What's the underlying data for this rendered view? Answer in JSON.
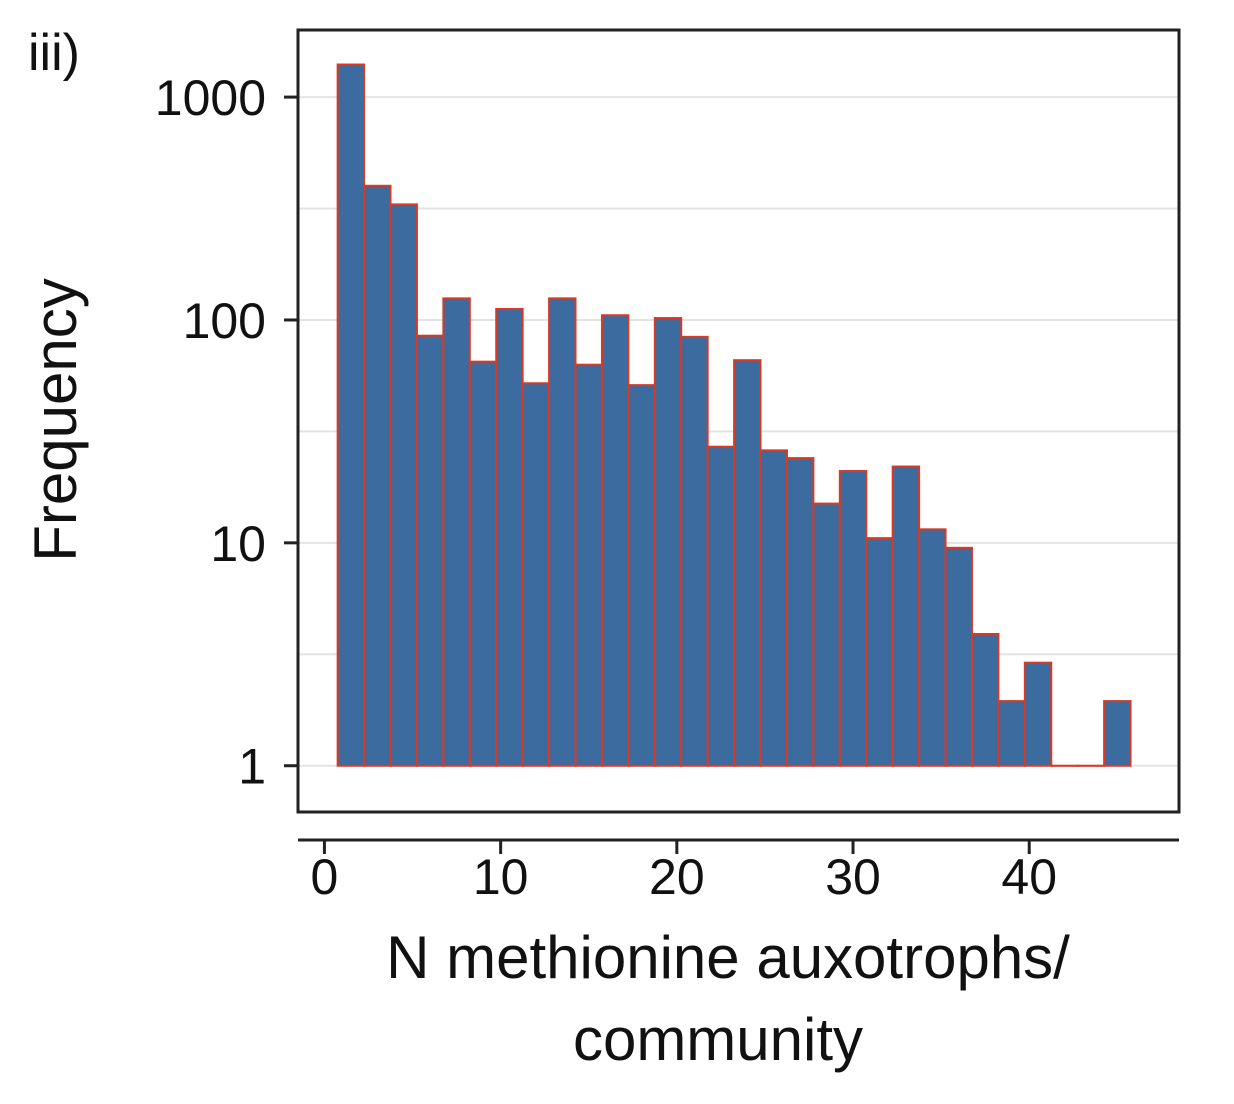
{
  "panel_label": "iii)",
  "chart_data": {
    "type": "bar",
    "title": "",
    "xlabel_lines": [
      "N methionine auxotrophs/",
      "community"
    ],
    "ylabel": "Frequency",
    "yscale": "log",
    "ylim": [
      0.62,
      2000
    ],
    "xlim": [
      -1.5,
      48.5
    ],
    "x_ticks": [
      0,
      10,
      20,
      30,
      40
    ],
    "y_ticks": [
      1,
      10,
      100,
      1000
    ],
    "bin_width": 1.5,
    "bin_centers": [
      1.5,
      3,
      4.5,
      6,
      7.5,
      9,
      10.5,
      12,
      13.5,
      15,
      16.5,
      18,
      19.5,
      21,
      22.5,
      24,
      25.5,
      27,
      28.5,
      30,
      31.5,
      33,
      34.5,
      36,
      37.5,
      39,
      40.5,
      42,
      43.5,
      45
    ],
    "values": [
      1400,
      400,
      330,
      85,
      125,
      65,
      112,
      52,
      125,
      63,
      105,
      51,
      102,
      84,
      27,
      66,
      26,
      24,
      15,
      21,
      10.5,
      22,
      11.5,
      9.5,
      3.9,
      1.95,
      2.9,
      1,
      1,
      1.95
    ],
    "grid": "horizontal",
    "colors": {
      "bar_fill": "#3c6ba0",
      "bar_edge": "#d83a24",
      "grid": "#e3e3e3",
      "axis": "#222222"
    }
  }
}
